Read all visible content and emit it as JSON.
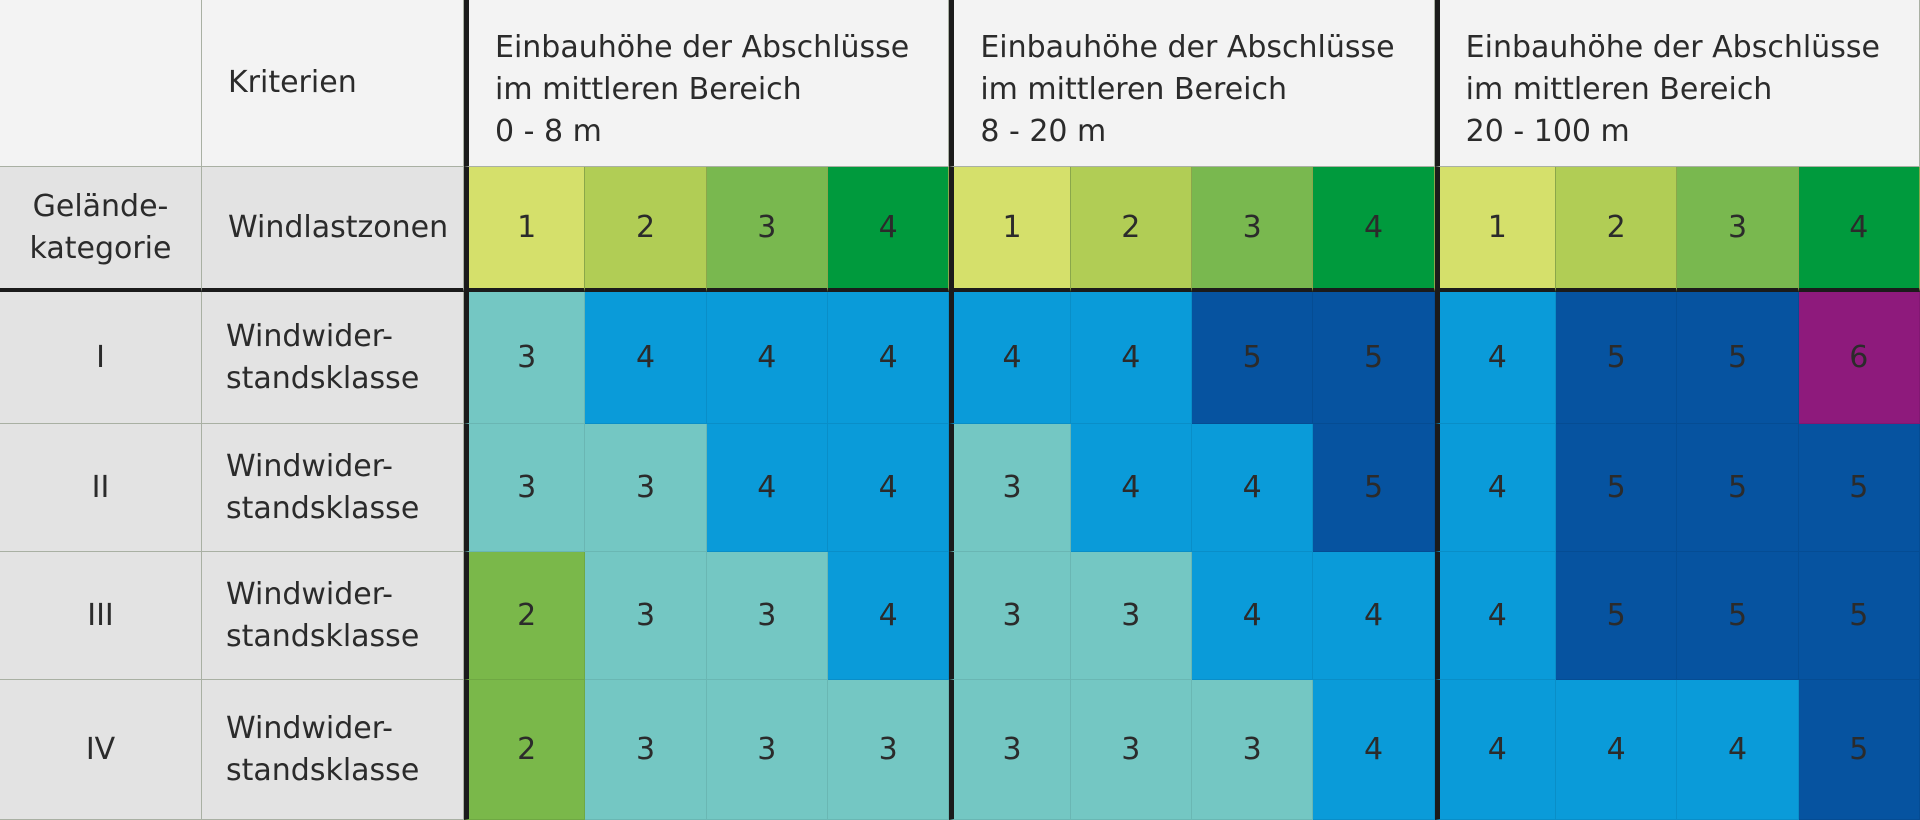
{
  "header": {
    "criteria_label": "Kriterien",
    "groups": [
      "Einbauhöhe der Abschlüsse\nim mittleren Bereich\n0 - 8 m",
      "Einbauhöhe der Abschlüsse\nim mittleren Bereich\n8 - 20 m",
      "Einbauhöhe der Abschlüsse\nim mittleren Bereich\n20 - 100 m"
    ]
  },
  "zones_row": {
    "terrain_label": "Gelände-\nkategorie",
    "zones_label": "Windlastzonen",
    "zones": [
      "1",
      "2",
      "3",
      "4",
      "1",
      "2",
      "3",
      "4",
      "1",
      "2",
      "3",
      "4"
    ]
  },
  "colors": {
    "zone": [
      "#d5e06b",
      "#b1cd55",
      "#79b84f",
      "#009a3d"
    ],
    "class": {
      "2": "#7ab84a",
      "3": "#74c7c3",
      "4": "#0a9bd9",
      "5": "#0653a0",
      "6": "#8e1a7c"
    }
  },
  "rows": [
    {
      "category": "I",
      "criterion": "Windwider-\nstandsklasse",
      "values": [
        "3",
        "4",
        "4",
        "4",
        "4",
        "4",
        "5",
        "5",
        "4",
        "5",
        "5",
        "6"
      ]
    },
    {
      "category": "II",
      "criterion": "Windwider-\nstandsklasse",
      "values": [
        "3",
        "3",
        "4",
        "4",
        "3",
        "4",
        "4",
        "5",
        "4",
        "5",
        "5",
        "5"
      ]
    },
    {
      "category": "III",
      "criterion": "Windwider-\nstandsklasse",
      "values": [
        "2",
        "3",
        "3",
        "4",
        "3",
        "3",
        "4",
        "4",
        "4",
        "5",
        "5",
        "5"
      ]
    },
    {
      "category": "IV",
      "criterion": "Windwider-\nstandsklasse",
      "values": [
        "2",
        "3",
        "3",
        "3",
        "3",
        "3",
        "3",
        "4",
        "4",
        "4",
        "4",
        "5"
      ]
    }
  ]
}
